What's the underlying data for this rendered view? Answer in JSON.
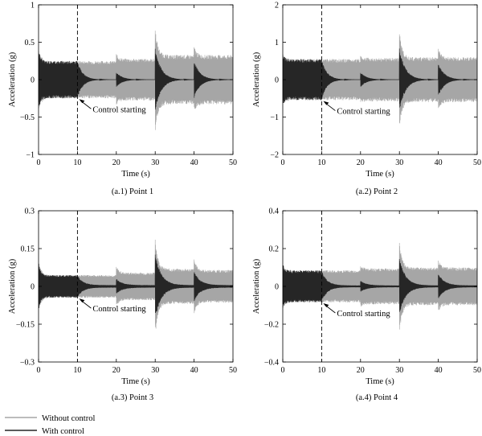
{
  "colors": {
    "without": "#a6a6a6",
    "with": "#262626",
    "axis": "#000000"
  },
  "legend": [
    {
      "name": "Without control",
      "color": "#a6a6a6"
    },
    {
      "name": "With control",
      "color": "#262626"
    }
  ],
  "chart_data": [
    {
      "type": "line",
      "caption": "(a.1) Point 1",
      "xlabel": "Time (s)",
      "ylabel": "Acceleration (g)",
      "xlim": [
        0,
        50
      ],
      "ylim": [
        -1,
        1
      ],
      "xticks": [
        "0",
        "10",
        "20",
        "30",
        "40",
        "50"
      ],
      "yticks": [
        "1",
        "0.5",
        "0",
        "−0.5",
        "−1"
      ],
      "ytick_values": [
        1,
        0.5,
        0,
        -0.5,
        -1
      ],
      "control_start": 10,
      "annotation": "Control starting",
      "series": [
        {
          "name": "Without control",
          "envelope": {
            "base": 0.25,
            "steps": [
              [
                0,
                0.25
              ],
              [
                10,
                0.25
              ],
              [
                20,
                0.28
              ],
              [
                30,
                0.33
              ],
              [
                40,
                0.33
              ]
            ],
            "peaks": [
              [
                0,
                0.42
              ],
              [
                20,
                0.35
              ],
              [
                30,
                0.7
              ],
              [
                40,
                0.45
              ]
            ]
          }
        },
        {
          "name": "With control",
          "envelope": {
            "before": 0.25,
            "after": 0.0,
            "peaks": [
              [
                0,
                0.42
              ],
              [
                20,
                0.1
              ],
              [
                30,
                0.42
              ],
              [
                40,
                0.25
              ]
            ]
          }
        }
      ]
    },
    {
      "type": "line",
      "caption": "(a.2) Point 2",
      "xlabel": "Time (s)",
      "ylabel": "Acceleration (g)",
      "xlim": [
        0,
        50
      ],
      "ylim": [
        -2,
        2
      ],
      "xticks": [
        "0",
        "10",
        "20",
        "30",
        "40",
        "50"
      ],
      "yticks": [
        "2",
        "1",
        "0",
        "−1",
        "−2"
      ],
      "ytick_values": [
        2,
        1,
        0,
        -1,
        -2
      ],
      "control_start": 10,
      "annotation": "Control starting",
      "series": [
        {
          "name": "Without control",
          "envelope": {
            "base": 0.55,
            "steps": [
              [
                0,
                0.55
              ],
              [
                10,
                0.55
              ],
              [
                20,
                0.58
              ],
              [
                30,
                0.6
              ],
              [
                40,
                0.6
              ]
            ],
            "peaks": [
              [
                0,
                0.7
              ],
              [
                20,
                0.65
              ],
              [
                30,
                1.3
              ],
              [
                40,
                0.85
              ]
            ]
          }
        },
        {
          "name": "With control",
          "envelope": {
            "before": 0.55,
            "after": 0.0,
            "peaks": [
              [
                0,
                0.7
              ],
              [
                20,
                0.2
              ],
              [
                30,
                0.85
              ],
              [
                40,
                0.45
              ]
            ]
          }
        }
      ]
    },
    {
      "type": "line",
      "caption": "(a.3) Point 3",
      "xlabel": "Time (s)",
      "ylabel": "Acceleration (g)",
      "xlim": [
        0,
        50
      ],
      "ylim": [
        -0.3,
        0.3
      ],
      "xticks": [
        "0",
        "10",
        "20",
        "30",
        "40",
        "50"
      ],
      "yticks": [
        "0.3",
        "0.15",
        "0",
        "−0.15",
        "−0.3"
      ],
      "ytick_values": [
        0.3,
        0.15,
        0,
        -0.15,
        -0.3
      ],
      "control_start": 10,
      "annotation": "Control starting",
      "series": [
        {
          "name": "Without control",
          "envelope": {
            "base": 0.045,
            "steps": [
              [
                0,
                0.045
              ],
              [
                10,
                0.045
              ],
              [
                20,
                0.055
              ],
              [
                30,
                0.07
              ],
              [
                40,
                0.065
              ]
            ],
            "peaks": [
              [
                0,
                0.1
              ],
              [
                20,
                0.08
              ],
              [
                30,
                0.2
              ],
              [
                40,
                0.11
              ]
            ]
          }
        },
        {
          "name": "With control",
          "envelope": {
            "before": 0.045,
            "after": 0.005,
            "peaks": [
              [
                0,
                0.1
              ],
              [
                20,
                0.03
              ],
              [
                30,
                0.13
              ],
              [
                40,
                0.06
              ]
            ]
          }
        }
      ]
    },
    {
      "type": "line",
      "caption": "(a.4) Point 4",
      "xlabel": "Time (s)",
      "ylabel": "Acceleration (g)",
      "xlim": [
        0,
        50
      ],
      "ylim": [
        -0.4,
        0.4
      ],
      "xticks": [
        "0",
        "10",
        "20",
        "30",
        "40",
        "50"
      ],
      "yticks": [
        "0.4",
        "0.2",
        "0",
        "−0.2",
        "−0.4"
      ],
      "ytick_values": [
        0.4,
        0.2,
        0,
        -0.2,
        -0.4
      ],
      "control_start": 10,
      "annotation": "Control starting",
      "series": [
        {
          "name": "Without control",
          "envelope": {
            "base": 0.085,
            "steps": [
              [
                0,
                0.085
              ],
              [
                10,
                0.085
              ],
              [
                20,
                0.095
              ],
              [
                30,
                0.1
              ],
              [
                40,
                0.1
              ]
            ],
            "peaks": [
              [
                0,
                0.12
              ],
              [
                20,
                0.11
              ],
              [
                30,
                0.25
              ],
              [
                40,
                0.14
              ]
            ]
          }
        },
        {
          "name": "With control",
          "envelope": {
            "before": 0.085,
            "after": 0.005,
            "peaks": [
              [
                0,
                0.12
              ],
              [
                20,
                0.03
              ],
              [
                30,
                0.15
              ],
              [
                40,
                0.07
              ]
            ]
          }
        }
      ]
    }
  ]
}
